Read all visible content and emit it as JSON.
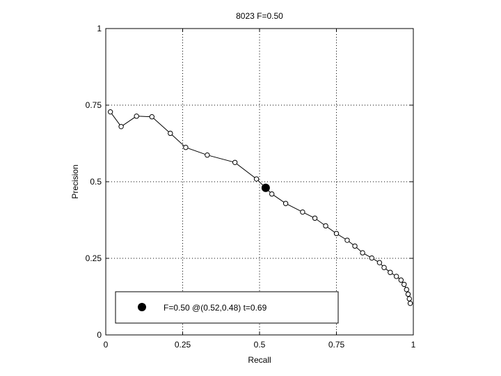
{
  "chart_data": {
    "type": "line",
    "title": "8023 F=0.50",
    "xlabel": "Recall",
    "ylabel": "Precision",
    "xlim": [
      0,
      1
    ],
    "ylim": [
      0,
      1
    ],
    "grid": true,
    "xticks": [
      0,
      0.25,
      0.5,
      0.75,
      1
    ],
    "yticks": [
      0,
      0.25,
      0.5,
      0.75,
      1
    ],
    "xtick_labels": [
      "0",
      "0.25",
      "0.5",
      "0.75",
      "1"
    ],
    "ytick_labels": [
      "0",
      "0.25",
      "0.5",
      "0.75",
      "1"
    ],
    "series": [
      {
        "marker": "open-circle",
        "color": "#000000",
        "x": [
          0.015,
          0.05,
          0.1,
          0.15,
          0.21,
          0.26,
          0.33,
          0.42,
          0.49,
          0.54,
          0.585,
          0.64,
          0.68,
          0.715,
          0.75,
          0.785,
          0.81,
          0.835,
          0.865,
          0.89,
          0.905,
          0.925,
          0.945,
          0.96,
          0.97,
          0.978,
          0.983,
          0.987,
          0.99
        ],
        "y": [
          0.728,
          0.68,
          0.714,
          0.712,
          0.658,
          0.612,
          0.587,
          0.563,
          0.509,
          0.46,
          0.429,
          0.401,
          0.381,
          0.356,
          0.331,
          0.309,
          0.29,
          0.268,
          0.251,
          0.236,
          0.22,
          0.204,
          0.191,
          0.179,
          0.165,
          0.148,
          0.133,
          0.118,
          0.103
        ]
      }
    ],
    "highlight_point": {
      "x": 0.52,
      "y": 0.48,
      "marker": "filled-circle",
      "color": "#000000"
    },
    "legend": {
      "position": "bottom-left",
      "text": "F=0.50 @(0.52,0.48) t=0.69"
    }
  }
}
